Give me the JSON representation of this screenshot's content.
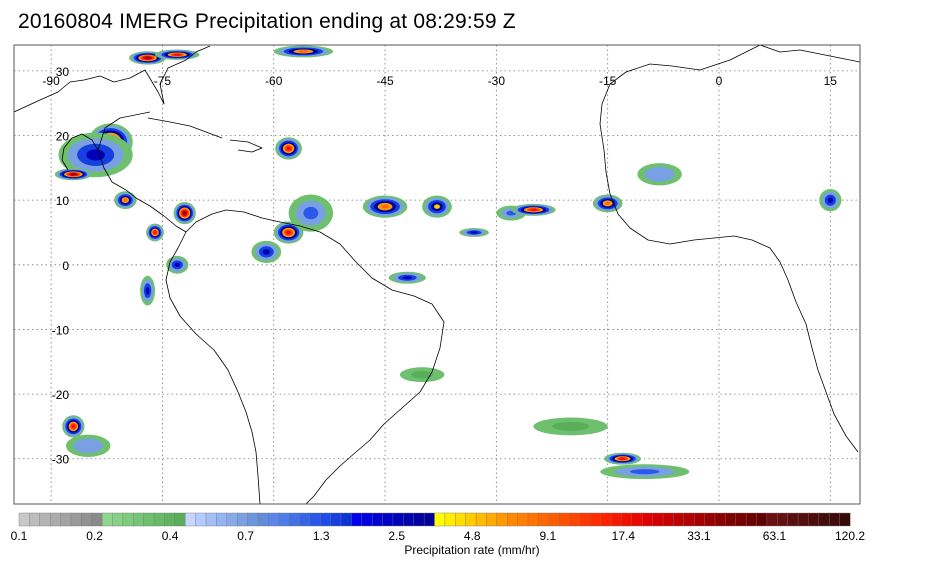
{
  "title": "20160804 IMERG Precipitation ending at 08:29:59 Z",
  "map": {
    "lon_min": -95,
    "lon_max": 19,
    "lat_min": -37,
    "lat_max": 34,
    "gridlines": true,
    "lon_ticks": [
      -90,
      -75,
      -60,
      -45,
      -30,
      -15,
      0,
      15
    ],
    "lat_ticks": [
      30,
      20,
      10,
      0,
      -10,
      -20,
      -30
    ],
    "lon_tick_labels": [
      "-90",
      "-75",
      "-60",
      "-45",
      "-30",
      "-15",
      "0",
      "15"
    ],
    "lat_tick_labels": [
      "30",
      "20",
      "10",
      "0",
      "-10",
      "-20",
      "-30"
    ],
    "coast_color": "#000000",
    "frame_color": "#555555"
  },
  "precip_cells": [
    {
      "lon": -77,
      "lat": 32,
      "rate": 33.1,
      "rx": 2.5,
      "ry": 0.9
    },
    {
      "lon": -73,
      "lat": 32.5,
      "rate": 17.4,
      "rx": 3,
      "ry": 0.7
    },
    {
      "lon": -56,
      "lat": 33,
      "rate": 9.1,
      "rx": 4,
      "ry": 0.8
    },
    {
      "lon": -82,
      "lat": 19,
      "rate": 33.1,
      "rx": 3,
      "ry": 2.5
    },
    {
      "lon": -84,
      "lat": 17,
      "rate": 2.5,
      "rx": 5,
      "ry": 3
    },
    {
      "lon": -87,
      "lat": 14,
      "rate": 33.1,
      "rx": 2.5,
      "ry": 0.8
    },
    {
      "lon": -80,
      "lat": 10,
      "rate": 9.1,
      "rx": 1.5,
      "ry": 1.2
    },
    {
      "lon": -72,
      "lat": 8,
      "rate": 33.1,
      "rx": 1.5,
      "ry": 1.5
    },
    {
      "lon": -76,
      "lat": 5,
      "rate": 17.4,
      "rx": 1.2,
      "ry": 1.2
    },
    {
      "lon": -73,
      "lat": 0,
      "rate": 2.5,
      "rx": 1.5,
      "ry": 1.2
    },
    {
      "lon": -77,
      "lat": -4,
      "rate": 2.5,
      "rx": 1,
      "ry": 2
    },
    {
      "lon": -58,
      "lat": 18,
      "rate": 17.4,
      "rx": 1.8,
      "ry": 1.5
    },
    {
      "lon": -58,
      "lat": 5,
      "rate": 17.4,
      "rx": 2,
      "ry": 1.5
    },
    {
      "lon": -61,
      "lat": 2,
      "rate": 2.5,
      "rx": 2,
      "ry": 1.5
    },
    {
      "lon": -55,
      "lat": 8,
      "rate": 1.3,
      "rx": 3,
      "ry": 2.5
    },
    {
      "lon": -45,
      "lat": 9,
      "rate": 9.1,
      "rx": 3,
      "ry": 1.5
    },
    {
      "lon": -38,
      "lat": 9,
      "rate": 4.8,
      "rx": 2,
      "ry": 1.5
    },
    {
      "lon": -28,
      "lat": 8,
      "rate": 1.3,
      "rx": 2,
      "ry": 1
    },
    {
      "lon": -25,
      "lat": 8.5,
      "rate": 17.4,
      "rx": 3,
      "ry": 0.8
    },
    {
      "lon": -15,
      "lat": 9.5,
      "rate": 9.1,
      "rx": 2,
      "ry": 1.2
    },
    {
      "lon": -33,
      "lat": 5,
      "rate": 2.5,
      "rx": 2,
      "ry": 0.6
    },
    {
      "lon": -8,
      "lat": 14,
      "rate": 0.7,
      "rx": 3,
      "ry": 1.5
    },
    {
      "lon": 15,
      "lat": 10,
      "rate": 2.5,
      "rx": 1.5,
      "ry": 1.5
    },
    {
      "lon": -42,
      "lat": -2,
      "rate": 2.5,
      "rx": 2.5,
      "ry": 0.8
    },
    {
      "lon": -87,
      "lat": -25,
      "rate": 17.4,
      "rx": 1.5,
      "ry": 1.5
    },
    {
      "lon": -85,
      "lat": -28,
      "rate": 0.7,
      "rx": 3,
      "ry": 1.5
    },
    {
      "lon": -13,
      "lat": -30,
      "rate": 17.4,
      "rx": 2.5,
      "ry": 0.8
    },
    {
      "lon": -10,
      "lat": -32,
      "rate": 1.3,
      "rx": 6,
      "ry": 1
    },
    {
      "lon": -20,
      "lat": -25,
      "rate": 0.4,
      "rx": 5,
      "ry": 1.2
    },
    {
      "lon": -40,
      "lat": -17,
      "rate": 0.4,
      "rx": 3,
      "ry": 1
    }
  ],
  "colorbar": {
    "label": "Precipitation rate (mm/hr)",
    "tick_labels": [
      "0.1",
      "0.2",
      "0.4",
      "0.7",
      "1.3",
      "2.5",
      "4.8",
      "9.1",
      "17.4",
      "33.1",
      "63.1",
      "120.2"
    ],
    "segments_per_tick": 8,
    "colors": [
      "#c8c8c8",
      "#bdbdbd",
      "#b4b4b4",
      "#ababab",
      "#a3a3a3",
      "#9a9a9a",
      "#929292",
      "#8a8a8a",
      "#8fd68f",
      "#86d186",
      "#7ecb7e",
      "#76c576",
      "#6ec06e",
      "#66ba66",
      "#60b460",
      "#5aae5a",
      "#c5d6ff",
      "#b5caff",
      "#a5bff8",
      "#96b4f0",
      "#88aaea",
      "#7aa0e4",
      "#6d96de",
      "#608cd8",
      "#5a86e8",
      "#4e7ce8",
      "#4270e8",
      "#3664e8",
      "#2a58e8",
      "#1e4ce8",
      "#1440e0",
      "#0a34d8",
      "#0000f0",
      "#0000e0",
      "#0000d0",
      "#0000c4",
      "#0000b8",
      "#0000ac",
      "#0000a0",
      "#000096",
      "#ffff00",
      "#ffee00",
      "#ffdd00",
      "#ffcc00",
      "#ffbb00",
      "#ffaa00",
      "#ff9900",
      "#ff8800",
      "#ff8000",
      "#ff7400",
      "#ff6800",
      "#ff5c00",
      "#ff5000",
      "#ff4400",
      "#ff3800",
      "#ff2c00",
      "#ff2000",
      "#f81800",
      "#f01000",
      "#e80800",
      "#e00000",
      "#d40000",
      "#c80000",
      "#bc0000",
      "#b00000",
      "#a40000",
      "#980000",
      "#8c0000",
      "#800000",
      "#760000",
      "#6c0000",
      "#620000",
      "#6a1010",
      "#621010",
      "#5a0f0f",
      "#530e0e",
      "#4c0d0d",
      "#450c0c",
      "#3e0b0b",
      "#370a0a"
    ]
  }
}
